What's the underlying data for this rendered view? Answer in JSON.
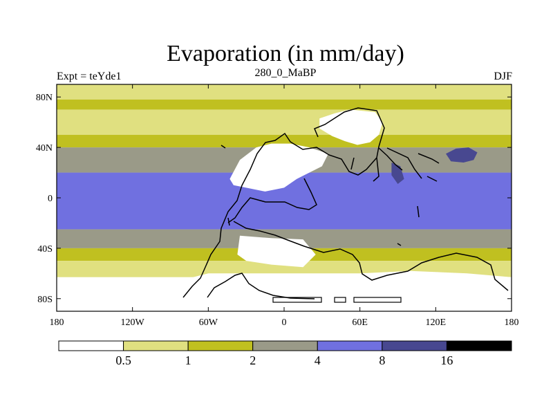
{
  "chart_data": {
    "type": "heatmap",
    "title": "Evaporation (in mm/day)",
    "subtitle_left": "Expt = teYde1",
    "subtitle_center": "280_0_MaBP",
    "subtitle_right": "DJF",
    "projection": "cylindrical equidistant (lon x lat)",
    "xlim": [
      -180,
      180
    ],
    "ylim": [
      -90,
      90
    ],
    "x_ticks": [
      {
        "value": -180,
        "label": "180"
      },
      {
        "value": -120,
        "label": "120W"
      },
      {
        "value": -60,
        "label": "60W"
      },
      {
        "value": 0,
        "label": "0"
      },
      {
        "value": 60,
        "label": "60E"
      },
      {
        "value": 120,
        "label": "120E"
      },
      {
        "value": 180,
        "label": "180"
      }
    ],
    "y_ticks": [
      {
        "value": 80,
        "label": "80N"
      },
      {
        "value": 40,
        "label": "40N"
      },
      {
        "value": 0,
        "label": "0"
      },
      {
        "value": -40,
        "label": "40S"
      },
      {
        "value": -80,
        "label": "80S"
      }
    ],
    "colorbar": {
      "levels": [
        0.5,
        1,
        2,
        4,
        8,
        16
      ],
      "level_labels": [
        "0.5",
        "1",
        "2",
        "4",
        "8",
        "16"
      ],
      "colors": [
        "#ffffff",
        "#e0e080",
        "#c0c020",
        "#9a9a88",
        "#7070e0",
        "#484890",
        "#000000"
      ]
    },
    "zonal_bands": [
      {
        "lat_range": [
          90,
          78
        ],
        "bin": 1,
        "range": "0.5-1 mm/day"
      },
      {
        "lat_range": [
          78,
          70
        ],
        "bin": 2,
        "range": "1-2 mm/day"
      },
      {
        "lat_range": [
          70,
          50
        ],
        "bin": 1,
        "range": "0.5-1 mm/day"
      },
      {
        "lat_range": [
          50,
          40
        ],
        "bin": 2,
        "range": "1-2 mm/day"
      },
      {
        "lat_range": [
          40,
          20
        ],
        "bin": 3,
        "range": "2-4 mm/day"
      },
      {
        "lat_range": [
          20,
          -25
        ],
        "bin": 4,
        "range": "4-8 mm/day"
      },
      {
        "lat_range": [
          -25,
          -40
        ],
        "bin": 3,
        "range": "2-4 mm/day"
      },
      {
        "lat_range": [
          -40,
          -50
        ],
        "bin": 2,
        "range": "1-2 mm/day"
      },
      {
        "lat_range": [
          -50,
          -63
        ],
        "bin": 1,
        "range": "0.5-1 mm/day"
      },
      {
        "lat_range": [
          -63,
          -90
        ],
        "bin": 0,
        "range": "0-0.5 mm/day"
      }
    ],
    "regions": [
      {
        "name": "northern-continent-dry-interior",
        "bin": 0,
        "polygon": [
          [
            28,
            63
          ],
          [
            40,
            67
          ],
          [
            52,
            70
          ],
          [
            72,
            68
          ],
          [
            78,
            60
          ],
          [
            75,
            50
          ],
          [
            68,
            44
          ],
          [
            58,
            42
          ],
          [
            48,
            45
          ],
          [
            38,
            49
          ],
          [
            28,
            55
          ]
        ]
      },
      {
        "name": "western-pangea-dry-belt",
        "bin": 0,
        "polygon": [
          [
            -43,
            15
          ],
          [
            -35,
            30
          ],
          [
            -22,
            40
          ],
          [
            -10,
            43
          ],
          [
            5,
            43
          ],
          [
            20,
            40
          ],
          [
            35,
            35
          ],
          [
            30,
            25
          ],
          [
            10,
            15
          ],
          [
            0,
            8
          ],
          [
            -15,
            5
          ],
          [
            -30,
            8
          ],
          [
            -40,
            10
          ]
        ]
      },
      {
        "name": "southern-dry-belt",
        "bin": 0,
        "polygon": [
          [
            -35,
            -30
          ],
          [
            -10,
            -32
          ],
          [
            15,
            -33
          ],
          [
            25,
            -45
          ],
          [
            15,
            -55
          ],
          [
            -10,
            -53
          ],
          [
            -30,
            -50
          ],
          [
            -37,
            -45
          ]
        ]
      },
      {
        "name": "tethys-high-evap",
        "bin": 5,
        "polygon": [
          [
            128,
            35
          ],
          [
            136,
            39
          ],
          [
            146,
            40
          ],
          [
            153,
            36
          ],
          [
            150,
            30
          ],
          [
            142,
            28
          ],
          [
            132,
            29
          ]
        ]
      },
      {
        "name": "tethys-east-gyre",
        "bin": 5,
        "polygon": [
          [
            85,
            28
          ],
          [
            92,
            25
          ],
          [
            95,
            15
          ],
          [
            90,
            11
          ],
          [
            85,
            18
          ]
        ]
      },
      {
        "name": "antarctic-coast-dry",
        "bin": 0,
        "polygon": [
          [
            -120,
            -90
          ],
          [
            180,
            -90
          ],
          [
            180,
            -63
          ],
          [
            145,
            -60
          ],
          [
            100,
            -58
          ],
          [
            60,
            -60
          ],
          [
            -10,
            -60
          ],
          [
            -60,
            -60
          ],
          [
            -100,
            -70
          ],
          [
            -120,
            -75
          ]
        ]
      }
    ],
    "continent_outline": "Pangea supercontinent (outlined in black)"
  }
}
